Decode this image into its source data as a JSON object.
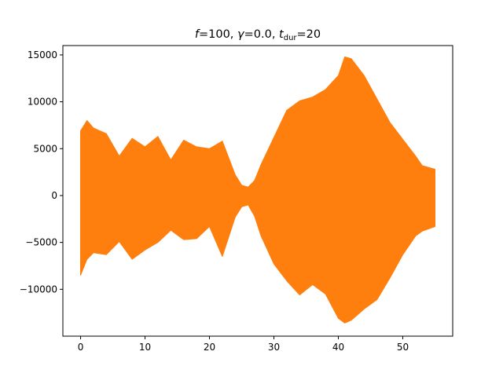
{
  "chart_data": {
    "type": "area",
    "title_parts": {
      "f_symbol": "f",
      "f_value": "=100, ",
      "gamma_symbol": "γ",
      "gamma_value": "=0.0, ",
      "t_symbol": "t",
      "t_subscript": "dur",
      "t_value": "=20"
    },
    "xlabel": "",
    "ylabel": "",
    "xlim": [
      -2.75,
      57.75
    ],
    "ylim": [
      -15000,
      16000
    ],
    "xticks": [
      0,
      10,
      20,
      30,
      40,
      50
    ],
    "xtick_labels": [
      "0",
      "10",
      "20",
      "30",
      "40",
      "50"
    ],
    "yticks": [
      -10000,
      -5000,
      0,
      5000,
      10000,
      15000
    ],
    "ytick_labels": [
      "−10000",
      "−5000",
      "0",
      "5000",
      "10000",
      "15000"
    ],
    "grid": false,
    "series": [
      {
        "color": "#1f77b4",
        "x": [
          0,
          1,
          2,
          4,
          6,
          8,
          10,
          12,
          14,
          16,
          18,
          20,
          22,
          24,
          25,
          26,
          27,
          28,
          30,
          32,
          34,
          36,
          38,
          40,
          41,
          42,
          44,
          46,
          48,
          50,
          52,
          53,
          55
        ],
        "upper": [
          6500,
          7800,
          7000,
          6400,
          4000,
          5900,
          5000,
          6100,
          3600,
          5600,
          5000,
          4800,
          5500,
          2000,
          1000,
          800,
          1500,
          3000,
          5900,
          8800,
          9800,
          10200,
          11000,
          12500,
          14500,
          14300,
          12500,
          10000,
          7500,
          5800,
          4000,
          3000,
          2600
        ],
        "lower": [
          -8000,
          -6500,
          -5800,
          -6000,
          -4600,
          -6500,
          -5500,
          -4700,
          -3400,
          -4400,
          -4300,
          -3000,
          -6200,
          -2100,
          -1100,
          -900,
          -2000,
          -4000,
          -7000,
          -8800,
          -10300,
          -9200,
          -10200,
          -12800,
          -13300,
          -13000,
          -11800,
          -10800,
          -8500,
          -6000,
          -4000,
          -3500,
          -3000
        ]
      },
      {
        "color": "#ff7f0e",
        "x": [
          0,
          1,
          2,
          4,
          6,
          8,
          10,
          12,
          14,
          16,
          18,
          20,
          22,
          24,
          25,
          26,
          27,
          28,
          30,
          32,
          34,
          36,
          38,
          40,
          41,
          42,
          44,
          46,
          48,
          50,
          52,
          53,
          55
        ],
        "upper": [
          6900,
          8000,
          7200,
          6600,
          4200,
          6100,
          5200,
          6300,
          3800,
          5900,
          5200,
          5000,
          5800,
          2200,
          1100,
          900,
          1600,
          3300,
          6200,
          9100,
          10100,
          10500,
          11300,
          12800,
          14800,
          14600,
          12800,
          10300,
          7800,
          6000,
          4200,
          3200,
          2800
        ],
        "lower": [
          -8500,
          -6800,
          -6100,
          -6300,
          -4900,
          -6800,
          -5800,
          -5000,
          -3700,
          -4700,
          -4600,
          -3300,
          -6500,
          -2300,
          -1200,
          -1000,
          -2200,
          -4300,
          -7300,
          -9100,
          -10600,
          -9500,
          -10500,
          -13100,
          -13600,
          -13300,
          -12100,
          -11100,
          -8800,
          -6300,
          -4300,
          -3800,
          -3300
        ]
      }
    ]
  }
}
